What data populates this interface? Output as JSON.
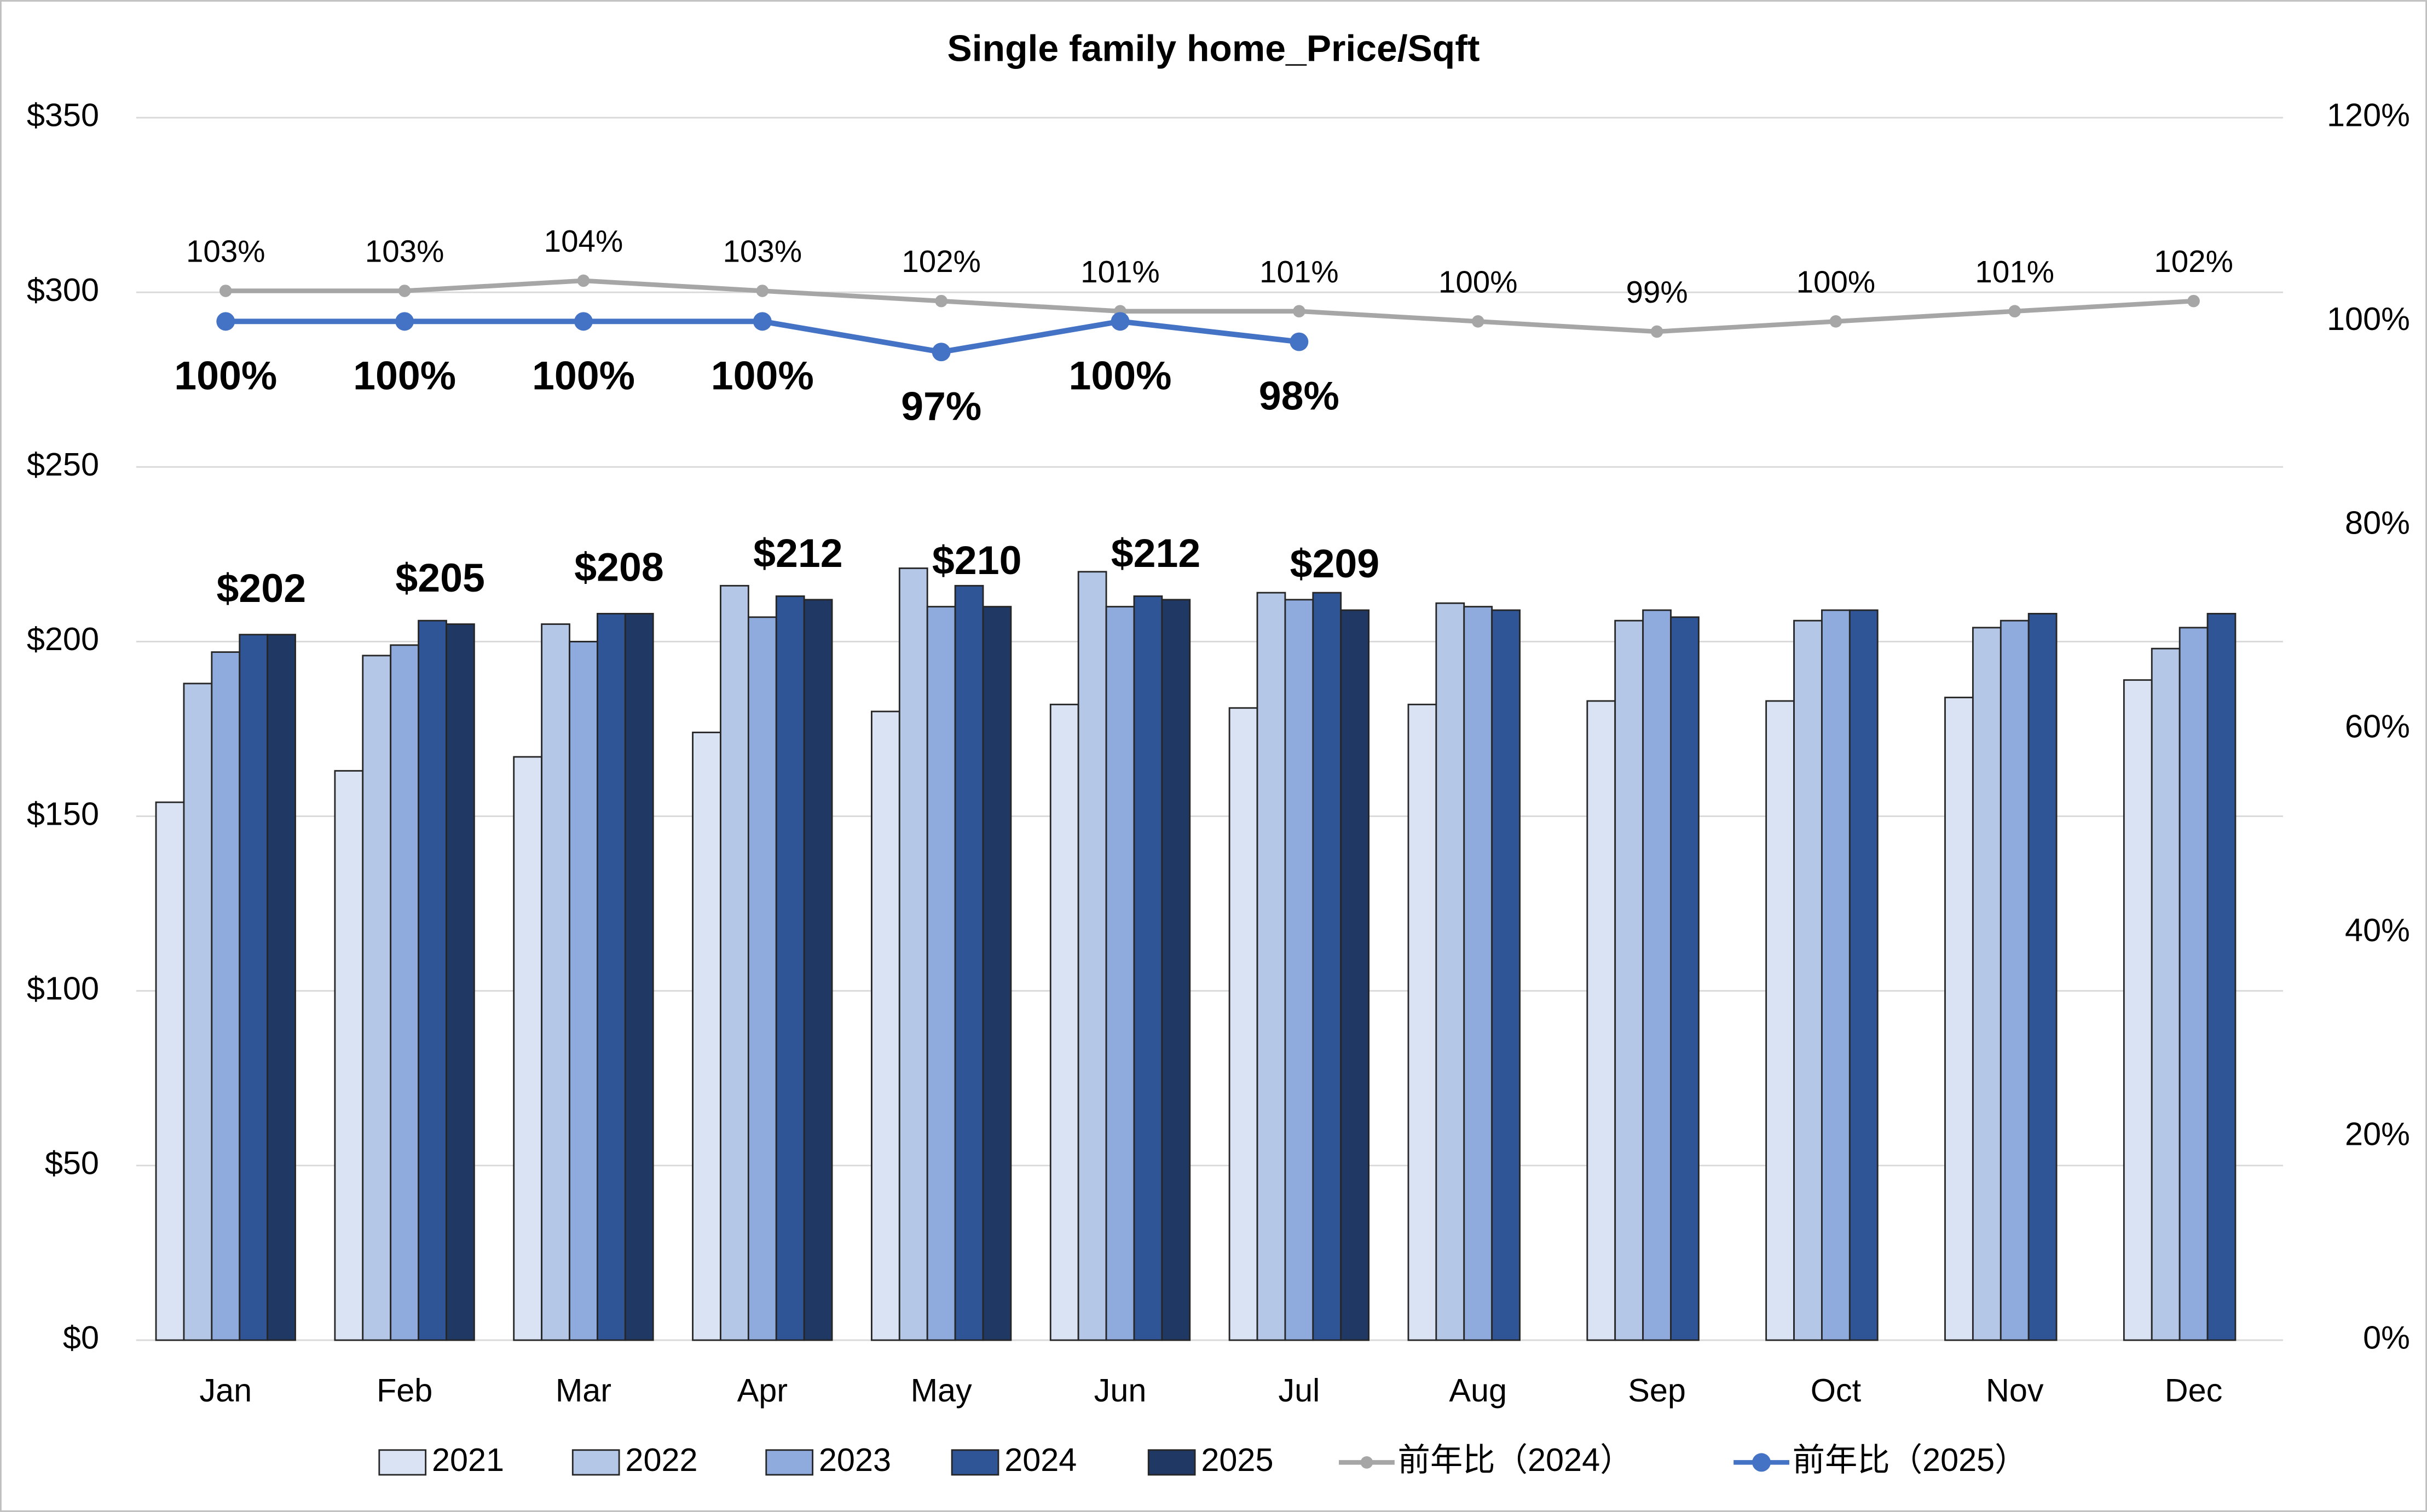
{
  "chart_data": {
    "type": "bar",
    "title": "Single family home_Price/Sqft",
    "categories": [
      "Jan",
      "Feb",
      "Mar",
      "Apr",
      "May",
      "Jun",
      "Jul",
      "Aug",
      "Sep",
      "Oct",
      "Nov",
      "Dec"
    ],
    "ylim": [
      0,
      350
    ],
    "yticks": [
      {
        "value": 0,
        "label": "$0"
      },
      {
        "value": 50,
        "label": "$50"
      },
      {
        "value": 100,
        "label": "$100"
      },
      {
        "value": 150,
        "label": "$150"
      },
      {
        "value": 200,
        "label": "$200"
      },
      {
        "value": 250,
        "label": "$250"
      },
      {
        "value": 300,
        "label": "$300"
      },
      {
        "value": 350,
        "label": "$350"
      }
    ],
    "y2lim": [
      0,
      120
    ],
    "y2ticks": [
      {
        "value": 0,
        "label": "0%"
      },
      {
        "value": 20,
        "label": "20%"
      },
      {
        "value": 40,
        "label": "40%"
      },
      {
        "value": 60,
        "label": "60%"
      },
      {
        "value": 80,
        "label": "80%"
      },
      {
        "value": 100,
        "label": "100%"
      },
      {
        "value": 120,
        "label": "120%"
      }
    ],
    "grid": true,
    "legend": "bottom",
    "series": [
      {
        "name": "2021",
        "color": "#dae3f3",
        "values": [
          154,
          163,
          167,
          174,
          180,
          182,
          181,
          182,
          183,
          183,
          184,
          189
        ]
      },
      {
        "name": "2022",
        "color": "#b4c7e7",
        "values": [
          188,
          196,
          205,
          216,
          221,
          220,
          214,
          211,
          206,
          206,
          204,
          198
        ]
      },
      {
        "name": "2023",
        "color": "#8faadc",
        "values": [
          197,
          199,
          200,
          207,
          210,
          210,
          212,
          210,
          209,
          209,
          206,
          204
        ]
      },
      {
        "name": "2024",
        "color": "#2f5597",
        "values": [
          202,
          206,
          208,
          213,
          216,
          213,
          214,
          209,
          207,
          209,
          208,
          208
        ]
      },
      {
        "name": "2025",
        "color": "#203864",
        "values": [
          202,
          205,
          208,
          212,
          210,
          212,
          209,
          null,
          null,
          null,
          null,
          null
        ],
        "value_labels": [
          "$202",
          "$205",
          "$208",
          "$212",
          "$210",
          "$212",
          "$209",
          null,
          null,
          null,
          null,
          null
        ]
      },
      {
        "name": "前年比（2024）",
        "type": "line",
        "axis": "y2",
        "color": "#a6a6a6",
        "values": [
          103,
          103,
          104,
          103,
          102,
          101,
          101,
          100,
          99,
          100,
          101,
          102
        ],
        "value_labels": [
          "103%",
          "103%",
          "104%",
          "103%",
          "102%",
          "101%",
          "101%",
          "100%",
          "99%",
          "100%",
          "101%",
          "102%"
        ]
      },
      {
        "name": "前年比（2025）",
        "type": "line",
        "axis": "y2",
        "color": "#4472c4",
        "values": [
          100,
          100,
          100,
          100,
          97,
          100,
          98,
          null,
          null,
          null,
          null,
          null
        ],
        "value_labels": [
          "100%",
          "100%",
          "100%",
          "100%",
          "97%",
          "100%",
          "98%",
          null,
          null,
          null,
          null,
          null
        ]
      }
    ]
  }
}
